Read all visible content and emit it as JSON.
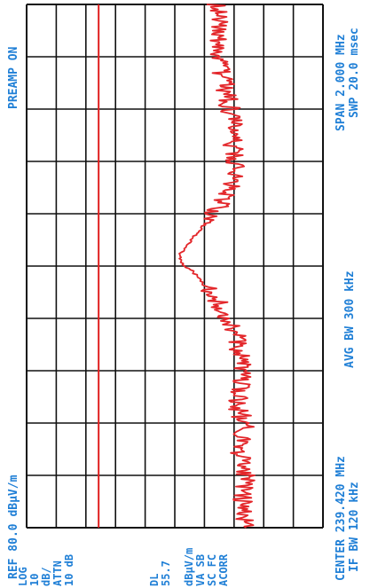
{
  "screen": {
    "preamp": "PREAMP ON",
    "ref_level": "REF 80.0 dBμV/m",
    "scale_mode": "LOG",
    "scale_value": "10",
    "scale_unit": "dB/",
    "atten_label": "ATTN",
    "atten_value": "10 dB",
    "dl_label": "DL",
    "dl_value": "55.7",
    "dl_unit": "dBμV/m",
    "side_flags": [
      "VA SB",
      "SC FC",
      "ACORR"
    ],
    "center": "CENTER 239.420 MHz",
    "if_bw": "IF BW 120 kHz",
    "avg_bw": "AVG BW 300 kHz",
    "span": "SPAN 2.000 MHz",
    "sweep": "SWP 20.0 msec"
  },
  "chart_data": {
    "type": "line",
    "x_unit": "MHz",
    "y_unit": "dBμV/m",
    "xlim": [
      238.42,
      240.42
    ],
    "ylim": [
      -20,
      80
    ],
    "reference_line_y": 55.7,
    "grid": true,
    "grid_divisions_x": 10,
    "grid_divisions_y": 10,
    "series": [
      {
        "x": [
          238.42,
          238.5,
          238.6,
          238.7,
          238.8,
          238.9,
          239.0,
          239.1,
          239.16,
          239.22,
          239.28,
          239.32,
          239.36,
          239.4,
          239.42,
          239.46,
          239.5,
          239.54,
          239.58,
          239.62,
          239.66,
          239.7,
          239.74,
          239.8,
          239.9,
          240.0,
          240.1,
          240.2,
          240.3,
          240.42
        ],
        "y": [
          6.0,
          7.5,
          5.5,
          8.0,
          6.5,
          9.0,
          7.5,
          8.5,
          9.5,
          12.0,
          15.0,
          18.0,
          21.0,
          24.0,
          27.0,
          28.5,
          26.0,
          23.0,
          20.0,
          17.0,
          14.0,
          12.0,
          10.0,
          9.5,
          10.5,
          11.0,
          13.0,
          15.0,
          15.5,
          16.0
        ]
      }
    ]
  }
}
